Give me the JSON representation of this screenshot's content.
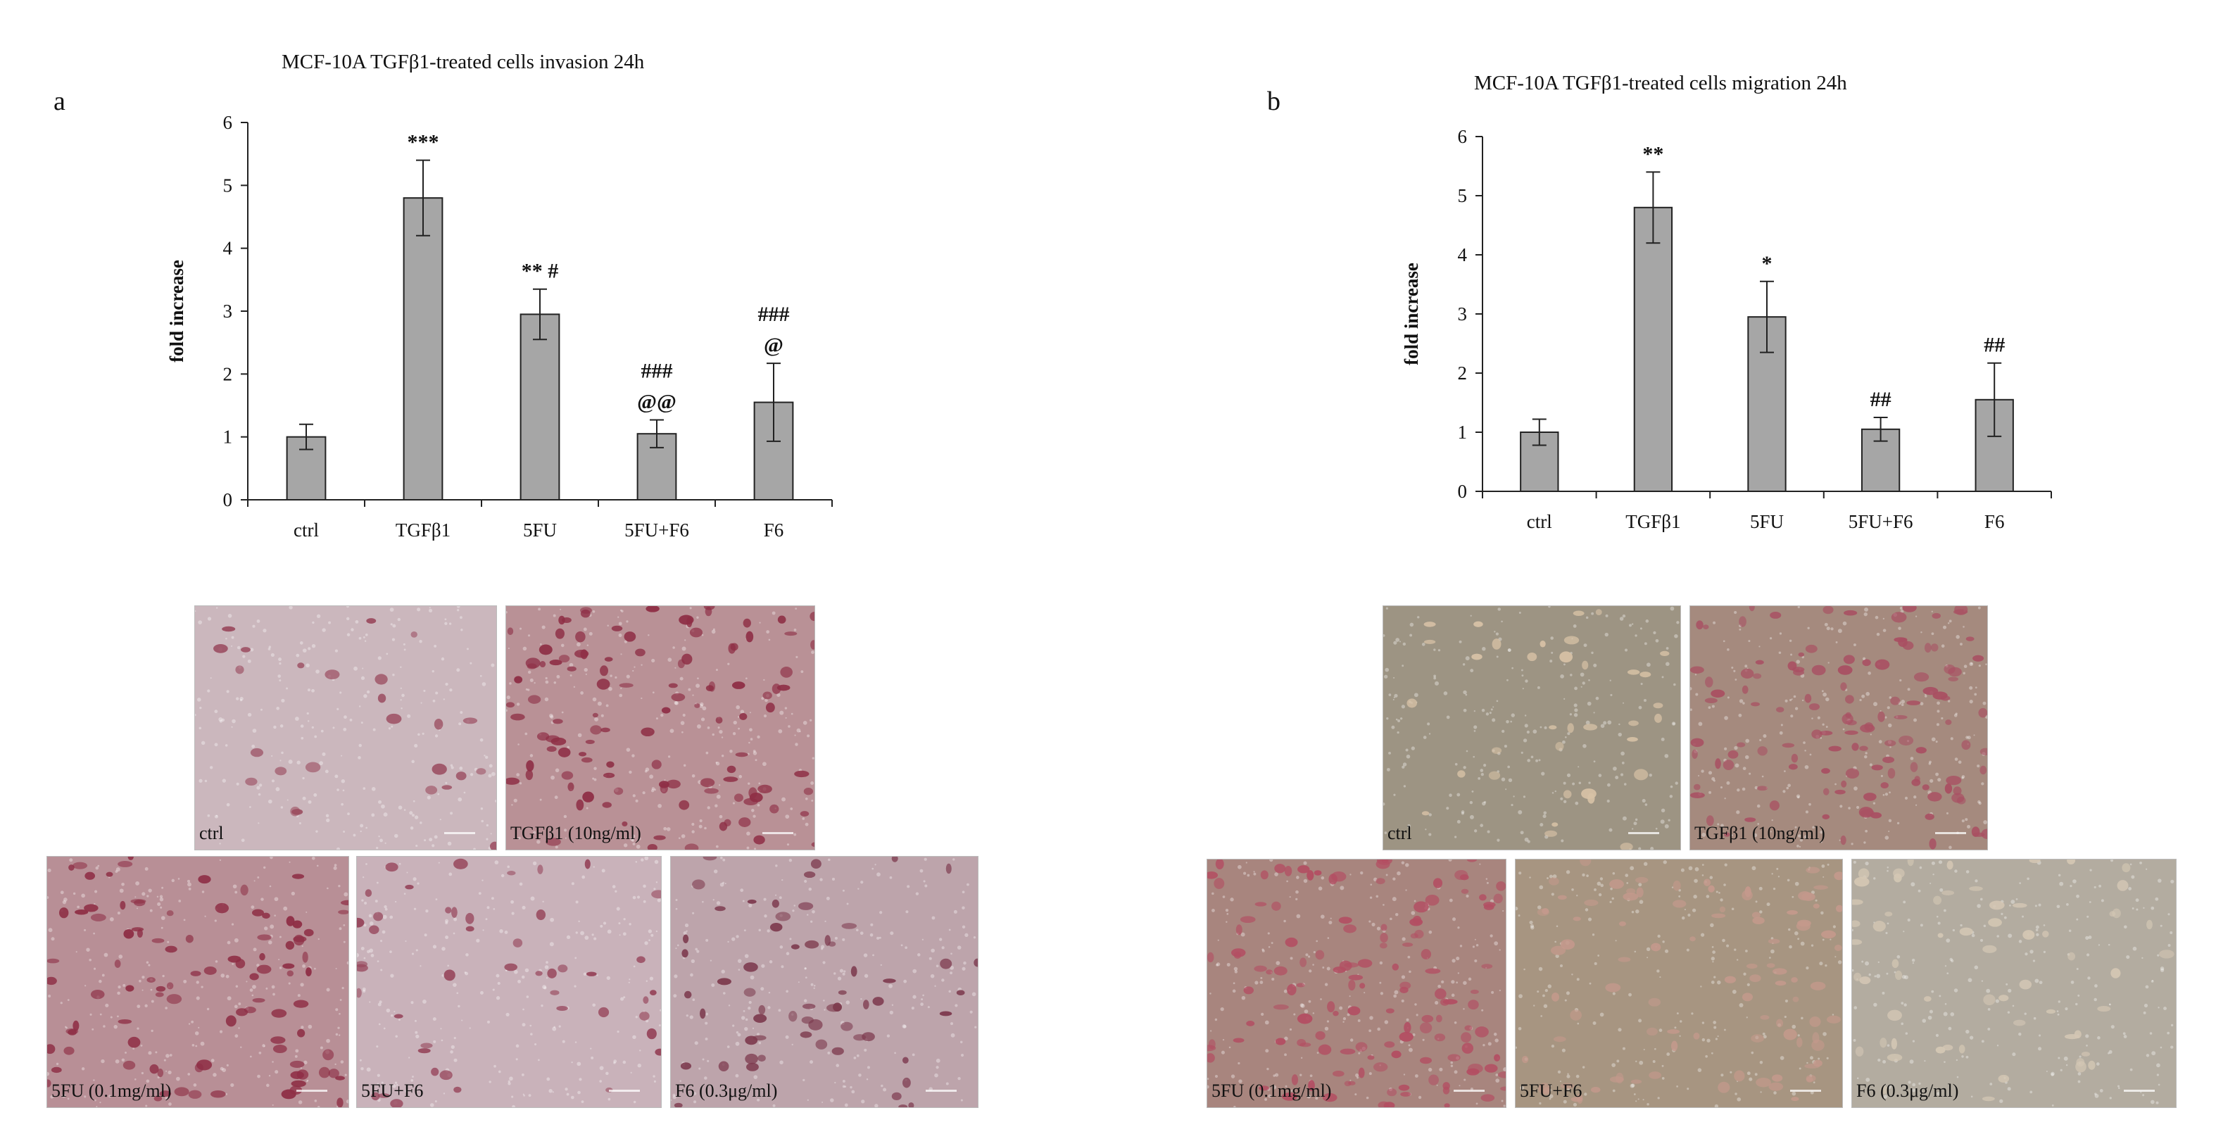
{
  "panels": [
    {
      "letter": "a",
      "chart_data": {
        "type": "bar",
        "title": "MCF-10A  TGFβ1-treated  cells invasion 24h",
        "ylabel": "fold increase",
        "categories": [
          "ctrl",
          "TGFβ1",
          "5FU",
          "5FU+F6",
          "F6"
        ],
        "values": [
          1.0,
          4.8,
          2.95,
          1.05,
          1.55
        ],
        "errors": [
          0.2,
          0.6,
          0.4,
          0.22,
          0.62
        ],
        "annotations": [
          [],
          [
            "***"
          ],
          [
            "** #"
          ],
          [
            "@@",
            "###"
          ],
          [
            "@",
            "###"
          ]
        ],
        "ylim": [
          0,
          6
        ],
        "yticks": [
          0,
          1,
          2,
          3,
          4,
          5,
          6
        ]
      },
      "photos_top": [
        {
          "caption": "ctrl",
          "tint": "#cbb7bd"
        },
        {
          "caption": "TGFβ1 (10ng/ml)",
          "tint": "#b99196"
        }
      ],
      "photos_bottom": [
        {
          "caption": "5FU (0.1mg/ml)",
          "tint": "#b88f96"
        },
        {
          "caption": "5FU+F6",
          "tint": "#c9b2ba"
        },
        {
          "caption": "F6 (0.3μg/ml)",
          "tint": "#bda4ab"
        }
      ]
    },
    {
      "letter": "b",
      "chart_data": {
        "type": "bar",
        "title": "MCF-10A  TGFβ1-treated  cells migration 24h",
        "ylabel": "fold increase",
        "categories": [
          "ctrl",
          "TGFβ1",
          "5FU",
          "5FU+F6",
          "F6"
        ],
        "values": [
          1.0,
          4.8,
          2.95,
          1.05,
          1.55
        ],
        "errors": [
          0.22,
          0.6,
          0.6,
          0.2,
          0.62
        ],
        "annotations": [
          [],
          [
            "**"
          ],
          [
            "*"
          ],
          [
            "##"
          ],
          [
            "##"
          ]
        ],
        "ylim": [
          0,
          6
        ],
        "yticks": [
          0,
          1,
          2,
          3,
          4,
          5,
          6
        ]
      },
      "photos_top": [
        {
          "caption": "ctrl",
          "tint": "#9d9483"
        },
        {
          "caption": "TGFβ1 (10ng/ml)",
          "tint": "#a58a7e"
        }
      ],
      "photos_bottom": [
        {
          "caption": "5FU (0.1mg/ml)",
          "tint": "#a8857e"
        },
        {
          "caption": "5FU+F6",
          "tint": "#a79581"
        },
        {
          "caption": "F6 (0.3μg/ml)",
          "tint": "#b3aca0"
        }
      ]
    }
  ]
}
